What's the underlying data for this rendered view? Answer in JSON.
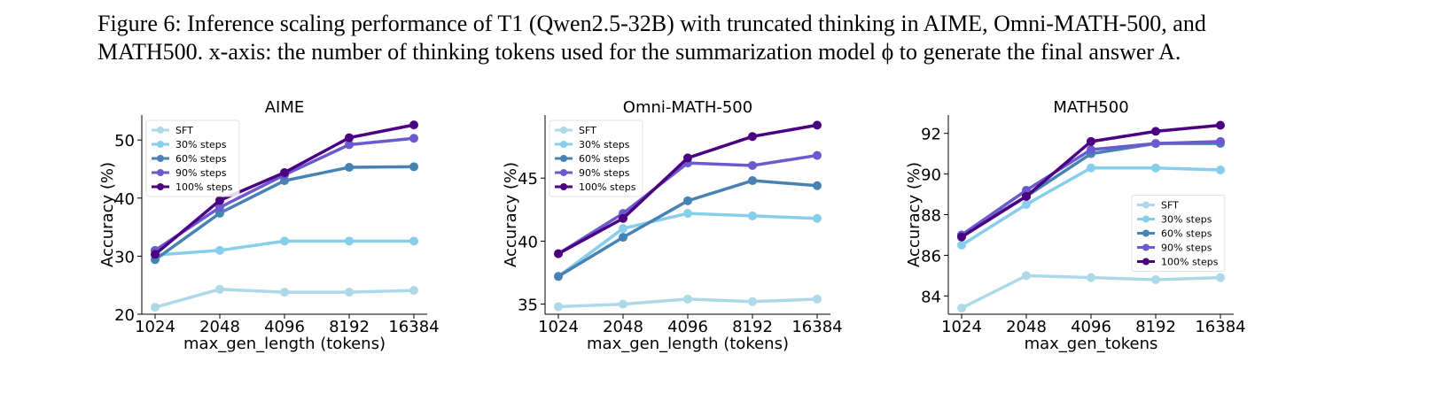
{
  "caption": {
    "lines": [
      "Figure 6: Inference scaling performance of T1 (Qwen2.5-32B) with truncated thinking in AIME, Omni-MATH-500, and",
      "MATH500. x-axis: the number of thinking tokens used for the summarization model ϕ to generate the final answer A."
    ]
  },
  "chart_data": [
    {
      "type": "line",
      "title": "AIME",
      "x_label": "max_gen_length (tokens)",
      "y_label": "Accuracy (%)",
      "categories": [
        "1024",
        "2048",
        "4096",
        "8192",
        "16384"
      ],
      "ylim": [
        20,
        54.3
      ],
      "yticks": [
        20,
        30,
        40,
        50
      ],
      "legend": "upper left",
      "series": [
        {
          "name": "SFT",
          "color": "#add8e6",
          "values": [
            21.2,
            24.3,
            23.8,
            23.8,
            24.1
          ]
        },
        {
          "name": "30% steps",
          "color": "#87ceeb",
          "values": [
            30.2,
            31.0,
            32.6,
            32.6,
            32.6
          ]
        },
        {
          "name": "60% steps",
          "color": "#4682b4",
          "values": [
            29.4,
            37.4,
            43.0,
            45.3,
            45.4
          ]
        },
        {
          "name": "90% steps",
          "color": "#6a5acd",
          "values": [
            31.0,
            38.4,
            44.0,
            49.2,
            50.3
          ]
        },
        {
          "name": "100% steps",
          "color": "#4b0082",
          "values": [
            30.3,
            39.6,
            44.4,
            50.4,
            52.6
          ]
        }
      ]
    },
    {
      "type": "line",
      "title": "Omni-MATH-500",
      "x_label": "max_gen_length (tokens)",
      "y_label": "Accuracy (%)",
      "categories": [
        "1024",
        "2048",
        "4096",
        "8192",
        "16384"
      ],
      "ylim": [
        34.2,
        50
      ],
      "yticks": [
        35,
        40,
        45
      ],
      "legend": "upper left",
      "series": [
        {
          "name": "SFT",
          "color": "#add8e6",
          "values": [
            34.8,
            35.0,
            35.4,
            35.2,
            35.4
          ]
        },
        {
          "name": "30% steps",
          "color": "#87ceeb",
          "values": [
            37.2,
            41.0,
            42.2,
            42.0,
            41.8
          ]
        },
        {
          "name": "60% steps",
          "color": "#4682b4",
          "values": [
            37.2,
            40.3,
            43.2,
            44.8,
            44.4
          ]
        },
        {
          "name": "90% steps",
          "color": "#6a5acd",
          "values": [
            39.0,
            42.2,
            46.2,
            46.0,
            46.8
          ]
        },
        {
          "name": "100% steps",
          "color": "#4b0082",
          "values": [
            39.0,
            41.8,
            46.6,
            48.3,
            49.2
          ]
        }
      ]
    },
    {
      "type": "line",
      "title": "MATH500",
      "x_label": "max_gen_tokens",
      "y_label": "Accuracy (%)",
      "categories": [
        "1024",
        "2048",
        "4096",
        "8192",
        "16384"
      ],
      "ylim": [
        83.1,
        92.9
      ],
      "yticks": [
        84,
        86,
        88,
        90,
        92
      ],
      "legend": "center right",
      "series": [
        {
          "name": "SFT",
          "color": "#add8e6",
          "values": [
            83.4,
            85.0,
            84.9,
            84.8,
            84.9
          ]
        },
        {
          "name": "30% steps",
          "color": "#87ceeb",
          "values": [
            86.5,
            88.5,
            90.3,
            90.3,
            90.2
          ]
        },
        {
          "name": "60% steps",
          "color": "#4682b4",
          "values": [
            87.0,
            88.9,
            91.0,
            91.5,
            91.5
          ]
        },
        {
          "name": "90% steps",
          "color": "#6a5acd",
          "values": [
            87.0,
            89.2,
            91.2,
            91.5,
            91.6
          ]
        },
        {
          "name": "100% steps",
          "color": "#4b0082",
          "values": [
            86.9,
            88.9,
            91.6,
            92.1,
            92.4
          ]
        }
      ]
    }
  ]
}
